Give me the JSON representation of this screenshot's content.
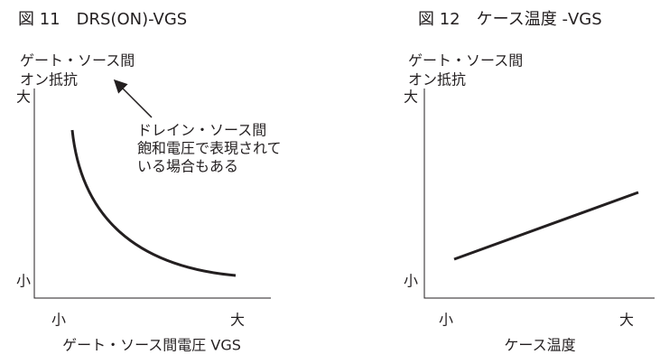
{
  "figures": [
    {
      "title": "図 11　DRS(ON)-VGS",
      "y_axis_label": [
        "ゲート・ソース間",
        "オン抵抗"
      ],
      "y_high": "大",
      "y_low": "小",
      "x_low": "小",
      "x_high": "大",
      "x_axis_label": "ゲート・ソース間電圧 VGS",
      "annotation": [
        "ドレイン・ソース間",
        "飽和電圧で表現されて",
        "いる場合もある"
      ]
    },
    {
      "title": "図 12　ケース温度 -VGS",
      "y_axis_label": [
        "ゲート・ソース間",
        "オン抵抗"
      ],
      "y_high": "大",
      "y_low": "小",
      "x_low": "小",
      "x_high": "大",
      "x_axis_label": "ケース温度"
    }
  ]
}
